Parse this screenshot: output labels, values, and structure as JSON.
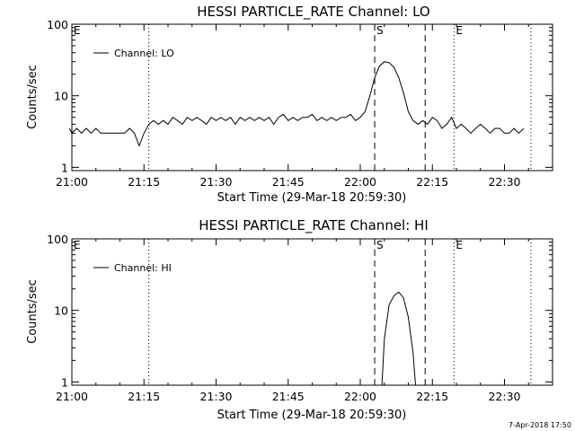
{
  "chart_data": [
    {
      "type": "line",
      "title": "HESSI PARTICLE_RATE Channel: LO",
      "xlabel": "Start Time (29-Mar-18 20:59:30)",
      "ylabel": "Counts/sec",
      "y_scale": "log",
      "ylim": [
        0.9,
        100
      ],
      "y_ticks": [
        1,
        10,
        100
      ],
      "y_tick_labels": [
        "1",
        "10",
        "100"
      ],
      "x_unit": "minutes",
      "xlim": [
        0,
        100
      ],
      "x_ticks": [
        0,
        15,
        30,
        45,
        60,
        75,
        90
      ],
      "x_tick_labels": [
        "21:00",
        "21:15",
        "21:30",
        "21:45",
        "22:00",
        "22:15",
        "22:30"
      ],
      "legend": {
        "position": "top-left",
        "entries": [
          "Channel: LO"
        ]
      },
      "series": [
        {
          "name": "Channel: LO",
          "x": [
            -0.5,
            0,
            1,
            2,
            3,
            4,
            5,
            6,
            7,
            8,
            9,
            10,
            11,
            12,
            13,
            14,
            15,
            16,
            17,
            18,
            19,
            20,
            21,
            22,
            23,
            24,
            25,
            26,
            27,
            28,
            29,
            30,
            31,
            32,
            33,
            34,
            35,
            36,
            37,
            38,
            39,
            40,
            41,
            42,
            43,
            44,
            45,
            46,
            47,
            48,
            49,
            50,
            51,
            52,
            53,
            54,
            55,
            56,
            57,
            58,
            59,
            60,
            61,
            62,
            63,
            64,
            65,
            66,
            67,
            68,
            69,
            70,
            71,
            72,
            73,
            74,
            75,
            76,
            77,
            78,
            79,
            80,
            81,
            82,
            83,
            84,
            85,
            86,
            87,
            88,
            89,
            90,
            91,
            92,
            93,
            94
          ],
          "y": [
            3.5,
            3.0,
            3.5,
            3.0,
            3.5,
            3.0,
            3.5,
            3.0,
            3.0,
            3.0,
            3.0,
            3.0,
            3.0,
            3.5,
            3.0,
            2.0,
            3.0,
            4.0,
            4.5,
            4.0,
            4.5,
            4.0,
            5.0,
            4.5,
            4.0,
            5.0,
            4.5,
            5.0,
            4.5,
            4.0,
            5.0,
            4.5,
            5.0,
            4.5,
            5.0,
            4.0,
            5.0,
            4.5,
            5.0,
            4.5,
            5.0,
            4.5,
            5.0,
            4.0,
            5.0,
            5.5,
            4.5,
            5.0,
            4.5,
            5.0,
            5.0,
            5.5,
            4.5,
            5.0,
            4.5,
            5.0,
            4.5,
            5.0,
            5.0,
            5.5,
            4.5,
            5.0,
            6.0,
            10.0,
            18.0,
            26.0,
            30.0,
            29.0,
            25.0,
            18.0,
            11.0,
            6.0,
            4.5,
            4.0,
            4.5,
            4.0,
            5.0,
            4.5,
            3.5,
            4.0,
            5.0,
            3.5,
            4.0,
            3.5,
            3.0,
            3.5,
            4.0,
            3.5,
            3.0,
            3.5,
            3.5,
            3.0,
            3.0,
            3.5,
            3.0,
            3.5
          ]
        }
      ],
      "markers": [
        {
          "x": 16,
          "style": "dotted",
          "label": ""
        },
        {
          "x": 63,
          "style": "dashed",
          "label": "S"
        },
        {
          "x": 73.5,
          "style": "dashed",
          "label": ""
        },
        {
          "x": 79.5,
          "style": "dotted",
          "label": "E"
        },
        {
          "x": 95.5,
          "style": "dotted",
          "label": ""
        }
      ],
      "corner_label": "E"
    },
    {
      "type": "line",
      "title": "HESSI PARTICLE_RATE Channel: HI",
      "xlabel": "Start Time (29-Mar-18 20:59:30)",
      "ylabel": "Counts/sec",
      "y_scale": "log",
      "ylim": [
        0.9,
        100
      ],
      "y_ticks": [
        1,
        10,
        100
      ],
      "y_tick_labels": [
        "1",
        "10",
        "100"
      ],
      "x_unit": "minutes",
      "xlim": [
        0,
        100
      ],
      "x_ticks": [
        0,
        15,
        30,
        45,
        60,
        75,
        90
      ],
      "x_tick_labels": [
        "21:00",
        "21:15",
        "21:30",
        "21:45",
        "22:00",
        "22:15",
        "22:30"
      ],
      "legend": {
        "position": "top-left",
        "entries": [
          "Channel: HI"
        ]
      },
      "series": [
        {
          "name": "Channel: HI",
          "x": [
            64.5,
            65,
            66,
            67,
            68,
            69,
            70,
            71,
            71.5
          ],
          "y": [
            0.9,
            4.0,
            12.0,
            16.0,
            18.0,
            15.0,
            8.0,
            2.5,
            0.9
          ]
        }
      ],
      "markers": [
        {
          "x": 16,
          "style": "dotted",
          "label": ""
        },
        {
          "x": 63,
          "style": "dashed",
          "label": "S"
        },
        {
          "x": 73.5,
          "style": "dashed",
          "label": ""
        },
        {
          "x": 79.5,
          "style": "dotted",
          "label": "E"
        },
        {
          "x": 95.5,
          "style": "dotted",
          "label": ""
        }
      ],
      "corner_label": "E"
    }
  ],
  "footer": {
    "timestamp": "7-Apr-2018 17:50"
  }
}
